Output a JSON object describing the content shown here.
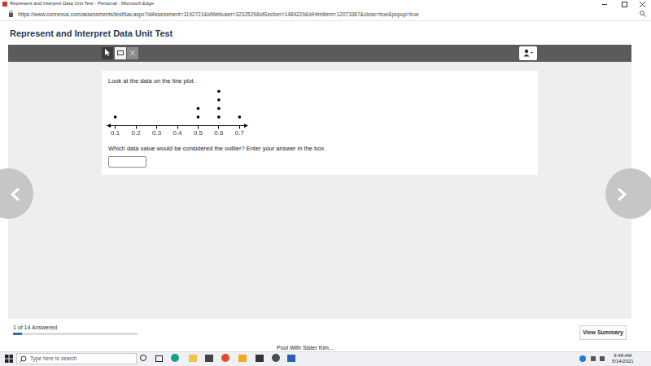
{
  "window": {
    "title": "Represent and Interpret Data Unit Test - Personal - Microsoft Edge",
    "url": "https://www.connexus.com/assessments/testNav.aspx?idAssessment=1192721&idWebuser=3232529&idSection=1484229&idHtmlitem=12073387&close=true&popup=true"
  },
  "header": {
    "title": "Represent and Interpret Data Unit Test"
  },
  "question": {
    "prompt": "Look at the data on the line plot.",
    "instruction": "Which data value would be considered the outlier? Enter your answer in the box."
  },
  "chart_data": {
    "type": "dot",
    "x": [
      0.1,
      0.5,
      0.6,
      0.7
    ],
    "values": [
      1,
      2,
      4,
      1
    ],
    "color": "#000000",
    "marker": "circle",
    "xlim": [
      0.07,
      0.73
    ],
    "xticks": [
      0.1,
      0.2,
      0.3,
      0.4,
      0.5,
      0.6,
      0.7
    ],
    "grid": false,
    "tick_labels": "x"
  },
  "footer": {
    "progress": {
      "label": "1 of 14 Answered",
      "answered": 1,
      "total": 14
    },
    "button": "View Summary"
  },
  "taskbar": {
    "search": "Type here to search",
    "window": "Pool With Sister Kim...",
    "time": "9:48 AM",
    "date": "5/14/2021"
  }
}
